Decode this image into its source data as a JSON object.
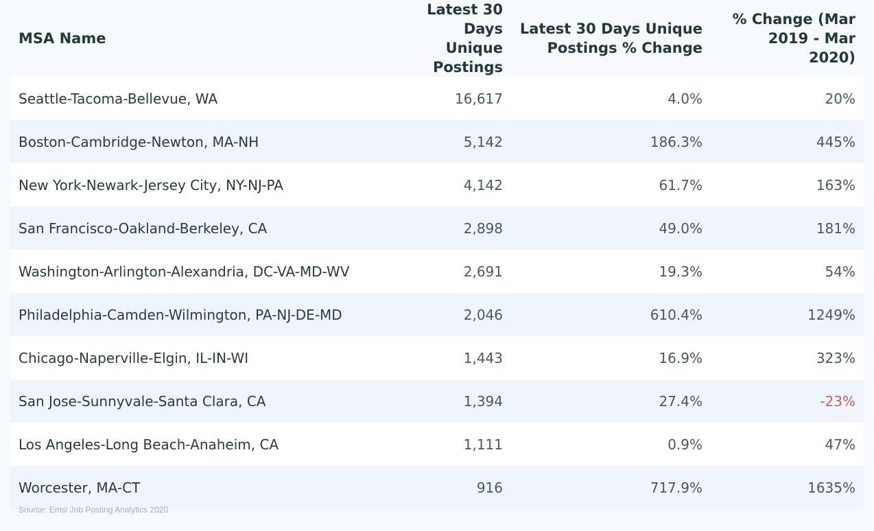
{
  "chart_data": {
    "type": "table",
    "columns": [
      "MSA Name",
      "Latest 30 Days Unique Postings",
      "Latest 30 Days Unique Postings % Change",
      "% Change (Mar 2019 - Mar 2020)"
    ],
    "header_lines": [
      [
        "MSA Name"
      ],
      [
        "Latest 30 Days",
        "Unique Postings"
      ],
      [
        "Latest 30 Days Unique",
        "Postings % Change"
      ],
      [
        "% Change (Mar",
        "2019 - Mar 2020)"
      ]
    ],
    "rows": [
      {
        "msa": "Seattle-Tacoma-Bellevue, WA",
        "postings": "16,617",
        "pct_change": "4.0%",
        "yoy_change": "20%"
      },
      {
        "msa": "Boston-Cambridge-Newton, MA-NH",
        "postings": "5,142",
        "pct_change": "186.3%",
        "yoy_change": "445%"
      },
      {
        "msa": "New York-Newark-Jersey City, NY-NJ-PA",
        "postings": "4,142",
        "pct_change": "61.7%",
        "yoy_change": "163%"
      },
      {
        "msa": "San Francisco-Oakland-Berkeley, CA",
        "postings": "2,898",
        "pct_change": "49.0%",
        "yoy_change": "181%"
      },
      {
        "msa": "Washington-Arlington-Alexandria, DC-VA-MD-WV",
        "postings": "2,691",
        "pct_change": "19.3%",
        "yoy_change": "54%"
      },
      {
        "msa": "Philadelphia-Camden-Wilmington, PA-NJ-DE-MD",
        "postings": "2,046",
        "pct_change": "610.4%",
        "yoy_change": "1249%"
      },
      {
        "msa": "Chicago-Naperville-Elgin, IL-IN-WI",
        "postings": "1,443",
        "pct_change": "16.9%",
        "yoy_change": "323%"
      },
      {
        "msa": "San Jose-Sunnyvale-Santa Clara, CA",
        "postings": "1,394",
        "pct_change": "27.4%",
        "yoy_change": "-23%"
      },
      {
        "msa": "Los Angeles-Long Beach-Anaheim, CA",
        "postings": "1,111",
        "pct_change": "0.9%",
        "yoy_change": "47%"
      },
      {
        "msa": "Worcester, MA-CT",
        "postings": "916",
        "pct_change": "717.9%",
        "yoy_change": "1635%"
      }
    ],
    "source": "Source: Emsi Job Posting Analytics 2020"
  },
  "colors": {
    "background": "#f7fafd",
    "row_white": "#ffffff",
    "row_tint": "#f0f5fb",
    "header_text": "#27373f",
    "negative": "#c9635e",
    "source_text": "#a4aeb5"
  }
}
